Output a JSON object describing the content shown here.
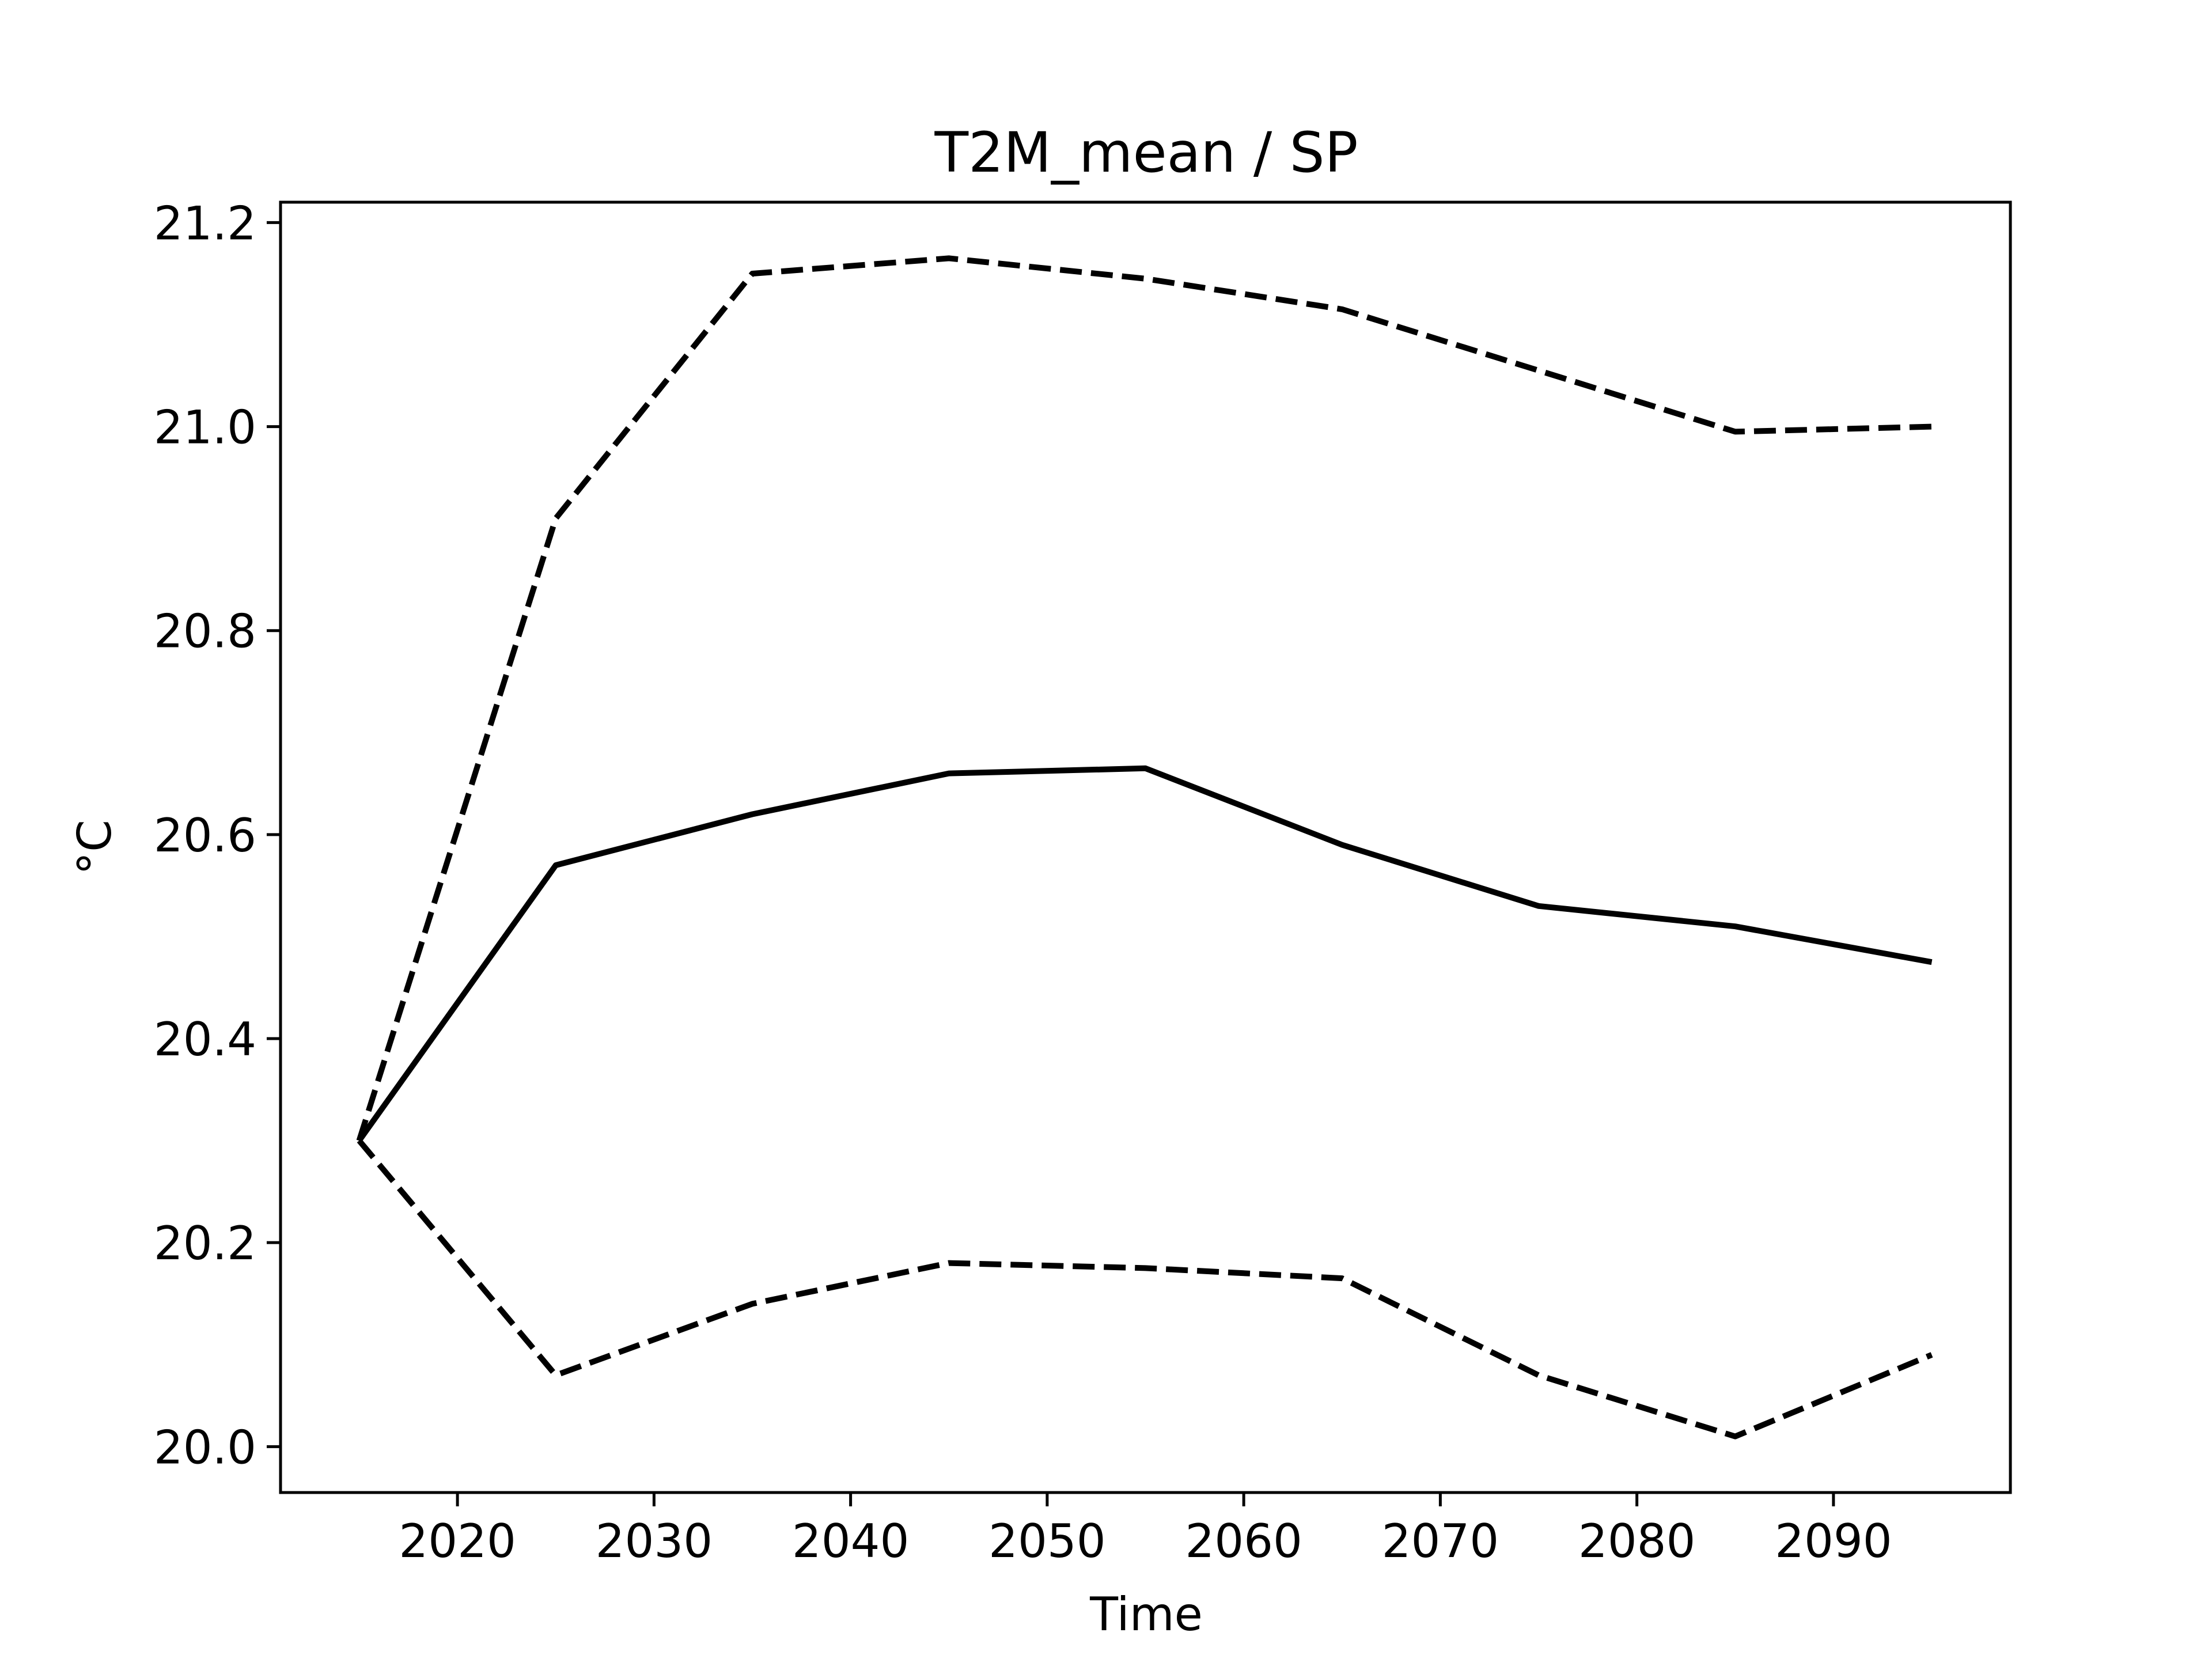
{
  "chart_data": {
    "type": "line",
    "title": "T2M_mean / SP",
    "xlabel": "Time",
    "ylabel": "°C",
    "xlim": [
      2011,
      2099
    ],
    "ylim": [
      19.955,
      21.22
    ],
    "xticks": [
      2020,
      2030,
      2040,
      2050,
      2060,
      2070,
      2080,
      2090
    ],
    "xtick_labels": [
      "2020",
      "2030",
      "2040",
      "2050",
      "2060",
      "2070",
      "2080",
      "2090"
    ],
    "yticks": [
      20.0,
      20.2,
      20.4,
      20.6,
      20.8,
      21.0,
      21.2
    ],
    "ytick_labels": [
      "20.0",
      "20.2",
      "20.4",
      "20.6",
      "20.8",
      "21.0",
      "21.2"
    ],
    "grid": false,
    "x": [
      2015,
      2025,
      2035,
      2045,
      2055,
      2065,
      2075,
      2085,
      2095
    ],
    "series": [
      {
        "style": "solid",
        "color": "#000000",
        "values": [
          20.3,
          20.57,
          20.62,
          20.66,
          20.665,
          20.59,
          20.53,
          20.51,
          20.475
        ]
      },
      {
        "style": "dashed",
        "color": "#000000",
        "values": [
          20.3,
          20.91,
          21.15,
          21.165,
          21.145,
          21.115,
          21.055,
          20.995,
          21.0
        ]
      },
      {
        "style": "dashed",
        "color": "#000000",
        "values": [
          20.3,
          20.07,
          20.14,
          20.18,
          20.175,
          20.165,
          20.07,
          20.01,
          20.09
        ]
      }
    ]
  }
}
